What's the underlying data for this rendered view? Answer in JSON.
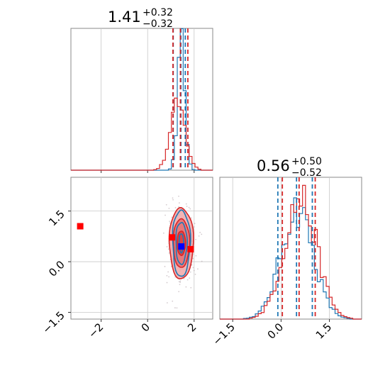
{
  "chart_data": {
    "type": "corner",
    "colors": {
      "series_a": "#1f77b4",
      "series_b": "#d62728",
      "truth": "#0000ff",
      "marker": "#ff0000",
      "grid": "#c8c8c8"
    },
    "series": [
      {
        "name": "",
        "color": "#1f77b4"
      },
      {
        "name": "",
        "color": "#d62728"
      }
    ],
    "parameters": [
      {
        "title_value": "1.41",
        "title_plus": "+0.32",
        "title_minus": "−0.32",
        "range": [
          -3.3,
          2.8
        ],
        "ticks": [
          {
            "v": -2,
            "label": "−2"
          },
          {
            "v": 0,
            "label": "0"
          },
          {
            "v": 2,
            "label": "2"
          }
        ],
        "hist_a": {
          "center": 1.45,
          "sigma": 0.16,
          "peak": 0.88,
          "quantiles": [
            1.1,
            1.43,
            1.62
          ]
        },
        "hist_b": {
          "center": 1.3,
          "sigma": 0.32,
          "peak": 0.45,
          "quantiles": [
            1.09,
            1.41,
            1.73
          ]
        }
      },
      {
        "title_value": "0.56",
        "title_plus": "+0.50",
        "title_minus": "−0.52",
        "range": [
          -1.9,
          2.5
        ],
        "ticks": [
          {
            "v": -1.5,
            "label": "−1.5"
          },
          {
            "v": 0.0,
            "label": "0.0"
          },
          {
            "v": 1.5,
            "label": "1.5"
          }
        ],
        "hist_a": {
          "center": 0.5,
          "sigma": 0.5,
          "peak": 0.78,
          "quantiles": [
            -0.1,
            0.48,
            0.97
          ]
        },
        "hist_b": {
          "center": 0.6,
          "sigma": 0.5,
          "peak": 0.85,
          "quantiles": [
            0.04,
            0.56,
            1.06
          ]
        }
      }
    ],
    "joint": {
      "x_range": [
        -3.3,
        2.8
      ],
      "y_range": [
        -1.7,
        2.5
      ],
      "y_ticks": [
        {
          "v": -1.5,
          "label": "−1.5"
        },
        {
          "v": 0.0,
          "label": "0.0"
        },
        {
          "v": 1.5,
          "label": "1.5"
        }
      ],
      "center": [
        1.45,
        0.55
      ],
      "contours_b": [
        {
          "rx": 0.52,
          "ry": 1.05
        },
        {
          "rx": 0.35,
          "ry": 0.72
        },
        {
          "rx": 0.18,
          "ry": 0.36
        }
      ],
      "contours_a": [
        {
          "rx": 0.38,
          "ry": 0.98
        },
        {
          "rx": 0.24,
          "ry": 0.62
        },
        {
          "rx": 0.1,
          "ry": 0.28
        }
      ],
      "markers": [
        {
          "x": -2.9,
          "y": 1.05,
          "color": "#ff0000"
        },
        {
          "x": 1.05,
          "y": 0.72,
          "color": "#ff0000"
        },
        {
          "x": 1.85,
          "y": 0.37,
          "color": "#ff0000"
        },
        {
          "x": 1.45,
          "y": 0.45,
          "color": "#0000ff"
        }
      ]
    }
  }
}
